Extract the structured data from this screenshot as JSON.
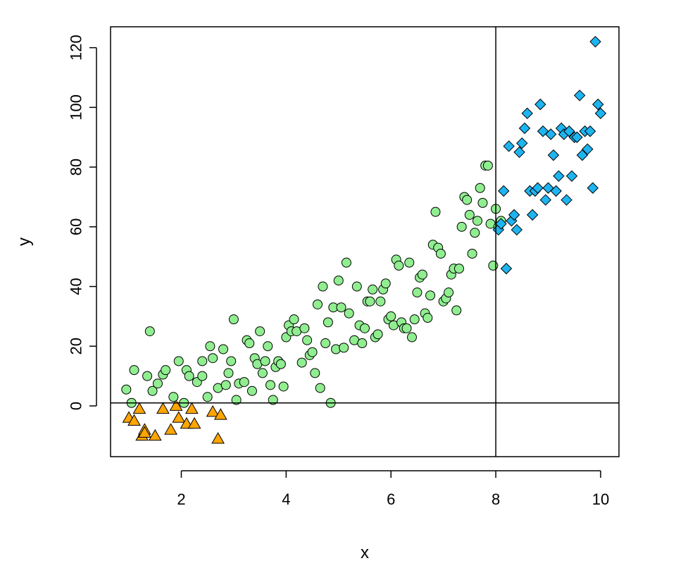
{
  "chart_data": {
    "type": "scatter",
    "title": "",
    "xlabel": "x",
    "ylabel": "y",
    "xlim": [
      0.65,
      10.35
    ],
    "ylim": [
      -17,
      127
    ],
    "x_ticks": [
      2,
      4,
      6,
      8,
      10
    ],
    "y_ticks": [
      0,
      20,
      40,
      60,
      80,
      100,
      120
    ],
    "x_tick_labels": [
      "2",
      "4",
      "6",
      "8",
      "10"
    ],
    "y_tick_labels": [
      "0",
      "20",
      "40",
      "60",
      "80",
      "100",
      "120"
    ],
    "grid": false,
    "legend": "none",
    "reference_lines": {
      "vertical_x": 8,
      "horizontal_y": 1
    },
    "series": [
      {
        "marker": "triangle",
        "color": "#FFA500",
        "points": [
          [
            1.0,
            -4
          ],
          [
            1.1,
            -5
          ],
          [
            1.2,
            -1
          ],
          [
            1.25,
            -10
          ],
          [
            1.3,
            -8
          ],
          [
            1.3,
            -9
          ],
          [
            1.5,
            -10
          ],
          [
            1.65,
            -1
          ],
          [
            1.8,
            -8
          ],
          [
            1.9,
            0
          ],
          [
            1.95,
            -4
          ],
          [
            2.1,
            -6
          ],
          [
            2.2,
            -1
          ],
          [
            2.25,
            -6
          ],
          [
            2.6,
            -2
          ],
          [
            2.75,
            -3
          ],
          [
            2.7,
            -11
          ]
        ]
      },
      {
        "marker": "circle",
        "color": "#90EE90",
        "points": [
          [
            0.95,
            5.5
          ],
          [
            1.05,
            1
          ],
          [
            1.1,
            12
          ],
          [
            1.35,
            10
          ],
          [
            1.4,
            25
          ],
          [
            1.45,
            5
          ],
          [
            1.55,
            7.5
          ],
          [
            1.65,
            10.5
          ],
          [
            1.7,
            12
          ],
          [
            1.85,
            3
          ],
          [
            1.95,
            15
          ],
          [
            2.05,
            1
          ],
          [
            2.1,
            12
          ],
          [
            2.15,
            10
          ],
          [
            2.3,
            8
          ],
          [
            2.4,
            10
          ],
          [
            2.4,
            15
          ],
          [
            2.5,
            3
          ],
          [
            2.55,
            20
          ],
          [
            2.6,
            16
          ],
          [
            2.7,
            6
          ],
          [
            2.8,
            19
          ],
          [
            2.85,
            7
          ],
          [
            2.9,
            11
          ],
          [
            2.95,
            15
          ],
          [
            3.0,
            29
          ],
          [
            3.05,
            2
          ],
          [
            3.1,
            7.5
          ],
          [
            3.2,
            8
          ],
          [
            3.25,
            22
          ],
          [
            3.3,
            21
          ],
          [
            3.35,
            5
          ],
          [
            3.4,
            16
          ],
          [
            3.45,
            14
          ],
          [
            3.5,
            25
          ],
          [
            3.55,
            11
          ],
          [
            3.6,
            15
          ],
          [
            3.65,
            20
          ],
          [
            3.7,
            7
          ],
          [
            3.75,
            2
          ],
          [
            3.8,
            13
          ],
          [
            3.85,
            15
          ],
          [
            3.9,
            14
          ],
          [
            3.95,
            6.5
          ],
          [
            4.0,
            23
          ],
          [
            4.05,
            27
          ],
          [
            4.1,
            25
          ],
          [
            4.15,
            29
          ],
          [
            4.2,
            25
          ],
          [
            4.3,
            14.5
          ],
          [
            4.35,
            26
          ],
          [
            4.4,
            22
          ],
          [
            4.45,
            17
          ],
          [
            4.5,
            18
          ],
          [
            4.55,
            11
          ],
          [
            4.6,
            34
          ],
          [
            4.65,
            6
          ],
          [
            4.7,
            40
          ],
          [
            4.75,
            21
          ],
          [
            4.8,
            28
          ],
          [
            4.85,
            1
          ],
          [
            4.9,
            33
          ],
          [
            4.95,
            19
          ],
          [
            5.0,
            42
          ],
          [
            5.05,
            33
          ],
          [
            5.1,
            19.5
          ],
          [
            5.15,
            48
          ],
          [
            5.2,
            31
          ],
          [
            5.3,
            22
          ],
          [
            5.35,
            40
          ],
          [
            5.4,
            27
          ],
          [
            5.45,
            21
          ],
          [
            5.5,
            26
          ],
          [
            5.55,
            35
          ],
          [
            5.6,
            35
          ],
          [
            5.65,
            39
          ],
          [
            5.7,
            23
          ],
          [
            5.75,
            24
          ],
          [
            5.8,
            35
          ],
          [
            5.85,
            39
          ],
          [
            5.9,
            41
          ],
          [
            5.95,
            29
          ],
          [
            6.0,
            30
          ],
          [
            6.05,
            27
          ],
          [
            6.1,
            49
          ],
          [
            6.15,
            47
          ],
          [
            6.2,
            28
          ],
          [
            6.25,
            26
          ],
          [
            6.3,
            26
          ],
          [
            6.35,
            48
          ],
          [
            6.4,
            23
          ],
          [
            6.45,
            29
          ],
          [
            6.5,
            38
          ],
          [
            6.55,
            43
          ],
          [
            6.6,
            44
          ],
          [
            6.65,
            31
          ],
          [
            6.7,
            29.5
          ],
          [
            6.75,
            37
          ],
          [
            6.8,
            54
          ],
          [
            6.85,
            65
          ],
          [
            6.9,
            53
          ],
          [
            6.95,
            51
          ],
          [
            7.0,
            35
          ],
          [
            7.05,
            36
          ],
          [
            7.1,
            38
          ],
          [
            7.15,
            44
          ],
          [
            7.2,
            46
          ],
          [
            7.25,
            32
          ],
          [
            7.3,
            46
          ],
          [
            7.35,
            60
          ],
          [
            7.4,
            70
          ],
          [
            7.45,
            69
          ],
          [
            7.5,
            64
          ],
          [
            7.55,
            51
          ],
          [
            7.6,
            58
          ],
          [
            7.65,
            62
          ],
          [
            7.7,
            73
          ],
          [
            7.75,
            68
          ],
          [
            7.8,
            80.5
          ],
          [
            7.85,
            80.5
          ],
          [
            7.9,
            61
          ],
          [
            7.95,
            47
          ],
          [
            8.0,
            66
          ],
          [
            8.05,
            60
          ],
          [
            8.1,
            62
          ]
        ]
      },
      {
        "marker": "diamond",
        "color": "#1EB4F0",
        "points": [
          [
            8.05,
            59
          ],
          [
            8.1,
            61
          ],
          [
            8.15,
            72
          ],
          [
            8.2,
            46
          ],
          [
            8.25,
            87
          ],
          [
            8.3,
            62
          ],
          [
            8.35,
            64
          ],
          [
            8.4,
            59
          ],
          [
            8.45,
            85
          ],
          [
            8.5,
            88
          ],
          [
            8.55,
            93
          ],
          [
            8.6,
            98
          ],
          [
            8.65,
            72
          ],
          [
            8.7,
            64
          ],
          [
            8.75,
            72
          ],
          [
            8.8,
            73
          ],
          [
            8.85,
            101
          ],
          [
            8.9,
            92
          ],
          [
            8.95,
            69
          ],
          [
            9.0,
            73
          ],
          [
            9.05,
            91
          ],
          [
            9.1,
            84
          ],
          [
            9.15,
            72
          ],
          [
            9.2,
            77
          ],
          [
            9.25,
            93
          ],
          [
            9.3,
            91
          ],
          [
            9.35,
            69
          ],
          [
            9.4,
            92
          ],
          [
            9.45,
            77
          ],
          [
            9.5,
            90
          ],
          [
            9.55,
            90
          ],
          [
            9.6,
            104
          ],
          [
            9.65,
            84
          ],
          [
            9.7,
            92
          ],
          [
            9.75,
            86
          ],
          [
            9.8,
            92
          ],
          [
            9.85,
            73
          ],
          [
            9.9,
            122
          ],
          [
            9.95,
            101
          ],
          [
            10.0,
            98
          ]
        ]
      }
    ]
  }
}
